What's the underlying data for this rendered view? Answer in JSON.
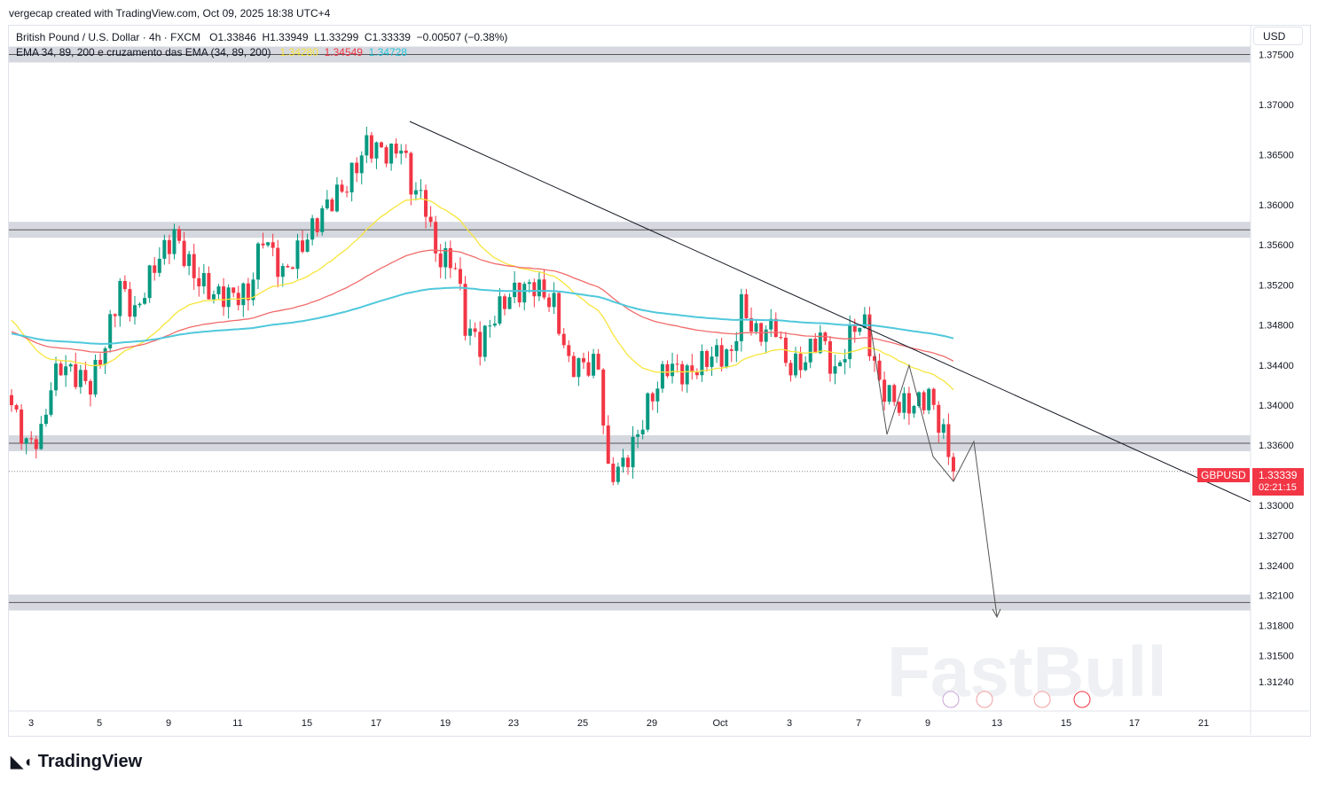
{
  "credit": "vergecap created with TradingView.com, Oct 09, 2025 18:38 UTC+4",
  "legend": {
    "symbol": "British Pound / U.S. Dollar · 4h · FXCM",
    "o": "O1.33846",
    "h": "H1.33949",
    "l": "L1.33299",
    "c": "C1.33339",
    "chg": "−0.00507 (−0.38%)",
    "indicator": "EMA 34, 89, 200 e cruzamento das EMA (34, 89, 200)",
    "ema34": "1.34280",
    "ema89": "1.34549",
    "ema200": "1.34728"
  },
  "currency": "USD",
  "price_tag": {
    "symbol": "GBPUSD",
    "price": "1.33339",
    "countdown": "02:21:15"
  },
  "brand": "TradingView",
  "watermark": "FastBull",
  "colors": {
    "up": "#089981",
    "down": "#f23645",
    "ema34": "#f7e53b",
    "ema89": "#f26b6b",
    "ema200": "#4fc8dc"
  },
  "chart_data": {
    "type": "candlestick",
    "title": "GBPUSD 4h",
    "y_ticks": [
      "1.37500",
      "1.37000",
      "1.36500",
      "1.36000",
      "1.35600",
      "1.35200",
      "1.34800",
      "1.34400",
      "1.34000",
      "1.33600",
      "1.33000",
      "1.32700",
      "1.32400",
      "1.32100",
      "1.31800",
      "1.31500",
      "1.31240"
    ],
    "x_ticks": [
      "3",
      "5",
      "9",
      "11",
      "15",
      "17",
      "19",
      "23",
      "25",
      "29",
      "Oct",
      "3",
      "7",
      "9",
      "13",
      "15",
      "17",
      "21"
    ],
    "ylim": [
      1.311,
      1.3755
    ],
    "close_path": [
      [
        0,
        1.34
      ],
      [
        3,
        1.336
      ],
      [
        6,
        1.337
      ],
      [
        8,
        1.342
      ],
      [
        10,
        1.344
      ],
      [
        16,
        1.342
      ],
      [
        19,
        1.346
      ],
      [
        22,
        1.352
      ],
      [
        25,
        1.349
      ],
      [
        29,
        1.354
      ],
      [
        33,
        1.357
      ],
      [
        37,
        1.353
      ],
      [
        41,
        1.351
      ],
      [
        48,
        1.351
      ],
      [
        51,
        1.357
      ],
      [
        55,
        1.353
      ],
      [
        59,
        1.356
      ],
      [
        64,
        1.36
      ],
      [
        68,
        1.362
      ],
      [
        72,
        1.366
      ],
      [
        77,
        1.365
      ],
      [
        79,
        1.366
      ],
      [
        81,
        1.362
      ],
      [
        84,
        1.36
      ],
      [
        86,
        1.355
      ],
      [
        90,
        1.354
      ],
      [
        92,
        1.348
      ],
      [
        95,
        1.346
      ],
      [
        98,
        1.349
      ],
      [
        101,
        1.351
      ],
      [
        106,
        1.352
      ],
      [
        110,
        1.35
      ],
      [
        113,
        1.344
      ],
      [
        117,
        1.344
      ],
      [
        119,
        1.344
      ],
      [
        121,
        1.333
      ],
      [
        124,
        1.334
      ],
      [
        127,
        1.337
      ],
      [
        129,
        1.34
      ],
      [
        133,
        1.344
      ],
      [
        137,
        1.343
      ],
      [
        142,
        1.345
      ],
      [
        146,
        1.345
      ],
      [
        148,
        1.35
      ],
      [
        151,
        1.347
      ],
      [
        155,
        1.348
      ],
      [
        157,
        1.344
      ],
      [
        160,
        1.344
      ],
      [
        164,
        1.347
      ],
      [
        167,
        1.343
      ],
      [
        171,
        1.348
      ],
      [
        173,
        1.348
      ],
      [
        176,
        1.342
      ],
      [
        180,
        1.34
      ],
      [
        183,
        1.34
      ],
      [
        186,
        1.341
      ],
      [
        189,
        1.337
      ],
      [
        191,
        1.3334
      ]
    ],
    "ema_seed": {
      "ema34": 1.349,
      "ema89": 1.3475,
      "ema200": 1.3472
    },
    "levels": [
      1.375,
      1.3575,
      1.3362,
      1.3203
    ],
    "last_price": 1.33339
  }
}
